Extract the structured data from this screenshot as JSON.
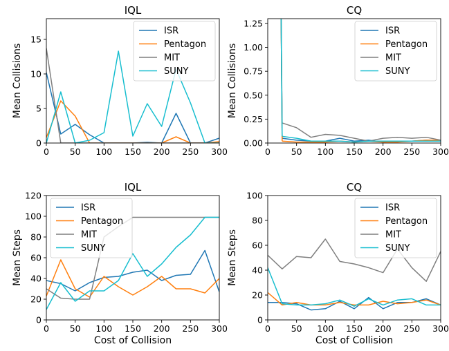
{
  "chart_data": [
    {
      "type": "line",
      "title": "IQL",
      "xlabel": "",
      "ylabel": "Mean Collisions",
      "xlim": [
        0,
        300
      ],
      "ylim": [
        0,
        18
      ],
      "xticks": [
        0,
        50,
        100,
        150,
        200,
        250,
        300
      ],
      "yticks": [
        0,
        5,
        10,
        15
      ],
      "ytick_labels": [
        "0",
        "5",
        "10",
        "15"
      ],
      "legend_position": "top-right",
      "x": [
        0,
        25,
        50,
        75,
        100,
        125,
        150,
        175,
        200,
        225,
        250,
        275,
        300
      ],
      "series": [
        {
          "name": "ISR",
          "color": "#1f77b4",
          "values": [
            10.2,
            1.3,
            2.7,
            1.2,
            0.0,
            0.0,
            0.0,
            0.1,
            0.0,
            4.3,
            0.0,
            0.0,
            0.7
          ]
        },
        {
          "name": "Pentagon",
          "color": "#ff7f0e",
          "values": [
            0.8,
            6.1,
            3.9,
            0.0,
            0.0,
            0.0,
            0.0,
            0.0,
            0.0,
            0.9,
            0.0,
            0.0,
            0.2
          ]
        },
        {
          "name": "MIT",
          "color": "#7f7f7f",
          "values": [
            13.7,
            0.0,
            0.0,
            0.0,
            0.0,
            0.0,
            0.0,
            0.0,
            0.0,
            0.0,
            0.0,
            0.0,
            0.0
          ]
        },
        {
          "name": "SUNY",
          "color": "#17becf",
          "values": [
            0.0,
            7.4,
            0.0,
            0.4,
            1.5,
            13.3,
            1.0,
            5.7,
            2.4,
            10.7,
            5.8,
            0.0,
            0.0
          ]
        }
      ]
    },
    {
      "type": "line",
      "title": "CQ",
      "xlabel": "",
      "ylabel": "Mean Collisions",
      "xlim": [
        0,
        300
      ],
      "ylim": [
        0,
        1.3
      ],
      "xticks": [
        0,
        50,
        100,
        150,
        200,
        250,
        300
      ],
      "yticks": [
        0,
        0.25,
        0.5,
        0.75,
        1.0,
        1.25
      ],
      "ytick_labels": [
        "0.00",
        "0.25",
        "0.50",
        "0.75",
        "1.00",
        "1.25"
      ],
      "legend_position": "top-right",
      "x": [
        0,
        25,
        50,
        75,
        100,
        125,
        150,
        175,
        200,
        225,
        250,
        275,
        300
      ],
      "series": [
        {
          "name": "ISR",
          "color": "#1f77b4",
          "values": [
            null,
            0.05,
            0.03,
            0.02,
            0.02,
            0.05,
            0.02,
            0.03,
            0.01,
            0.02,
            0.02,
            0.03,
            0.02
          ]
        },
        {
          "name": "Pentagon",
          "color": "#ff7f0e",
          "values": [
            null,
            0.02,
            0.01,
            0.01,
            0.01,
            0.02,
            0.01,
            0.02,
            0.01,
            0.01,
            0.02,
            0.03,
            0.03
          ]
        },
        {
          "name": "MIT",
          "color": "#7f7f7f",
          "values": [
            null,
            0.21,
            0.16,
            0.06,
            0.09,
            0.08,
            0.05,
            0.02,
            0.05,
            0.06,
            0.05,
            0.06,
            0.03
          ]
        },
        {
          "name": "SUNY",
          "color": "#17becf",
          "values": [
            null,
            0.07,
            0.05,
            0.02,
            0.02,
            0.02,
            0.01,
            0.02,
            0.02,
            0.02,
            0.02,
            0.02,
            0.02
          ]
        }
      ]
    },
    {
      "type": "line",
      "title": "IQL",
      "xlabel": "Cost of Collision",
      "ylabel": "Mean Steps",
      "xlim": [
        0,
        300
      ],
      "ylim": [
        0,
        120
      ],
      "xticks": [
        0,
        50,
        100,
        150,
        200,
        250,
        300
      ],
      "yticks": [
        0,
        20,
        40,
        60,
        80,
        100,
        120
      ],
      "ytick_labels": [
        "0",
        "20",
        "40",
        "60",
        "80",
        "100",
        "120"
      ],
      "legend_position": "top-left",
      "x": [
        0,
        25,
        50,
        75,
        100,
        125,
        150,
        175,
        200,
        225,
        250,
        275,
        300
      ],
      "series": [
        {
          "name": "ISR",
          "color": "#1f77b4",
          "values": [
            38,
            35,
            28,
            36,
            41,
            42,
            46,
            48,
            38,
            43,
            44,
            67,
            27
          ]
        },
        {
          "name": "Pentagon",
          "color": "#ff7f0e",
          "values": [
            23,
            58,
            30,
            22,
            42,
            32,
            24,
            32,
            42,
            30,
            30,
            26,
            40
          ]
        },
        {
          "name": "MIT",
          "color": "#7f7f7f",
          "values": [
            30,
            21,
            20,
            20,
            80,
            90,
            99,
            99,
            99,
            99,
            99,
            99,
            99
          ]
        },
        {
          "name": "SUNY",
          "color": "#17becf",
          "values": [
            10,
            36,
            18,
            28,
            28,
            38,
            64,
            42,
            54,
            70,
            82,
            99,
            99
          ]
        }
      ]
    },
    {
      "type": "line",
      "title": "CQ",
      "xlabel": "Cost of Collision",
      "ylabel": "Mean Steps",
      "xlim": [
        0,
        300
      ],
      "ylim": [
        0,
        100
      ],
      "xticks": [
        0,
        50,
        100,
        150,
        200,
        250,
        300
      ],
      "yticks": [
        0,
        20,
        40,
        60,
        80,
        100
      ],
      "ytick_labels": [
        "0",
        "20",
        "40",
        "60",
        "80",
        "100"
      ],
      "legend_position": "top-right",
      "x": [
        0,
        25,
        50,
        75,
        100,
        125,
        150,
        175,
        200,
        225,
        250,
        275,
        300
      ],
      "series": [
        {
          "name": "ISR",
          "color": "#1f77b4",
          "values": [
            14,
            14,
            13,
            8,
            9,
            15,
            9,
            18,
            9,
            14,
            14,
            17,
            12
          ]
        },
        {
          "name": "Pentagon",
          "color": "#ff7f0e",
          "values": [
            22,
            12,
            14,
            12,
            12,
            14,
            12,
            12,
            15,
            13,
            14,
            16,
            12
          ]
        },
        {
          "name": "MIT",
          "color": "#7f7f7f",
          "values": [
            52,
            41,
            51,
            50,
            65,
            47,
            45,
            42,
            38,
            57,
            42,
            31,
            55
          ]
        },
        {
          "name": "SUNY",
          "color": "#17becf",
          "values": [
            42,
            13,
            12,
            12,
            13,
            16,
            11,
            17,
            12,
            16,
            17,
            12,
            12
          ]
        }
      ]
    }
  ]
}
